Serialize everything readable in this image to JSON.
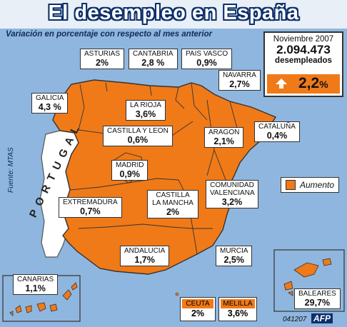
{
  "header": {
    "title": "El desempleo en España",
    "subtitle": "Variación en porcentaje con respecto al mes anterior"
  },
  "source": "Fuente: MTAS",
  "country_label": "P O R T U G A L",
  "summary": {
    "month": "Noviembre 2007",
    "count": "2.094.473",
    "unit": "desempleados",
    "change": "2,2",
    "change_suffix": "%"
  },
  "legend": {
    "label": "Aumento",
    "color": "#f07a18"
  },
  "colors": {
    "sea": "#8fb6de",
    "increase": "#f07a18",
    "portugal": "#ffffff",
    "border": "#333333",
    "title_outline": "#0d2f6b"
  },
  "regions": {
    "asturias": {
      "name": "ASTURIAS",
      "value": "2%"
    },
    "cantabria": {
      "name": "CANTABRIA",
      "value": "2,8 %"
    },
    "pais_vasco": {
      "name": "PAIS VASCO",
      "value": "0,9%"
    },
    "navarra": {
      "name": "NAVARRA",
      "value": "2,7%"
    },
    "galicia": {
      "name": "GALICIA",
      "value": "4,3 %"
    },
    "la_rioja": {
      "name": "LA RIOJA",
      "value": "3,6%"
    },
    "cataluna": {
      "name": "CATALUÑA",
      "value": "0,4%"
    },
    "castilla_leon": {
      "name": "CASTILLA Y LEON",
      "value": "0,6%"
    },
    "aragon": {
      "name": "ARAGON",
      "value": "2,1%"
    },
    "madrid": {
      "name": "MADRID",
      "value": "0,9%"
    },
    "extremadura": {
      "name": "EXTREMADURA",
      "value": "0,7%"
    },
    "castilla_mancha": {
      "name": "CASTILLA LA MANCHA",
      "value": "2%"
    },
    "valenciana": {
      "name": "COMUNIDAD VALENCIANA",
      "value": "3,2%"
    },
    "andalucia": {
      "name": "ANDALUCIA",
      "value": "1,7%"
    },
    "murcia": {
      "name": "MURCIA",
      "value": "2,5%"
    },
    "canarias": {
      "name": "CANARIAS",
      "value": "1,1%"
    },
    "ceuta": {
      "name": "CEUTA",
      "value": "2%"
    },
    "melilla": {
      "name": "MELILLA",
      "value": "3,6%"
    },
    "baleares": {
      "name": "BALEARES",
      "value": "29,7%"
    }
  },
  "footer": {
    "code": "041207",
    "agency": "AFP"
  }
}
